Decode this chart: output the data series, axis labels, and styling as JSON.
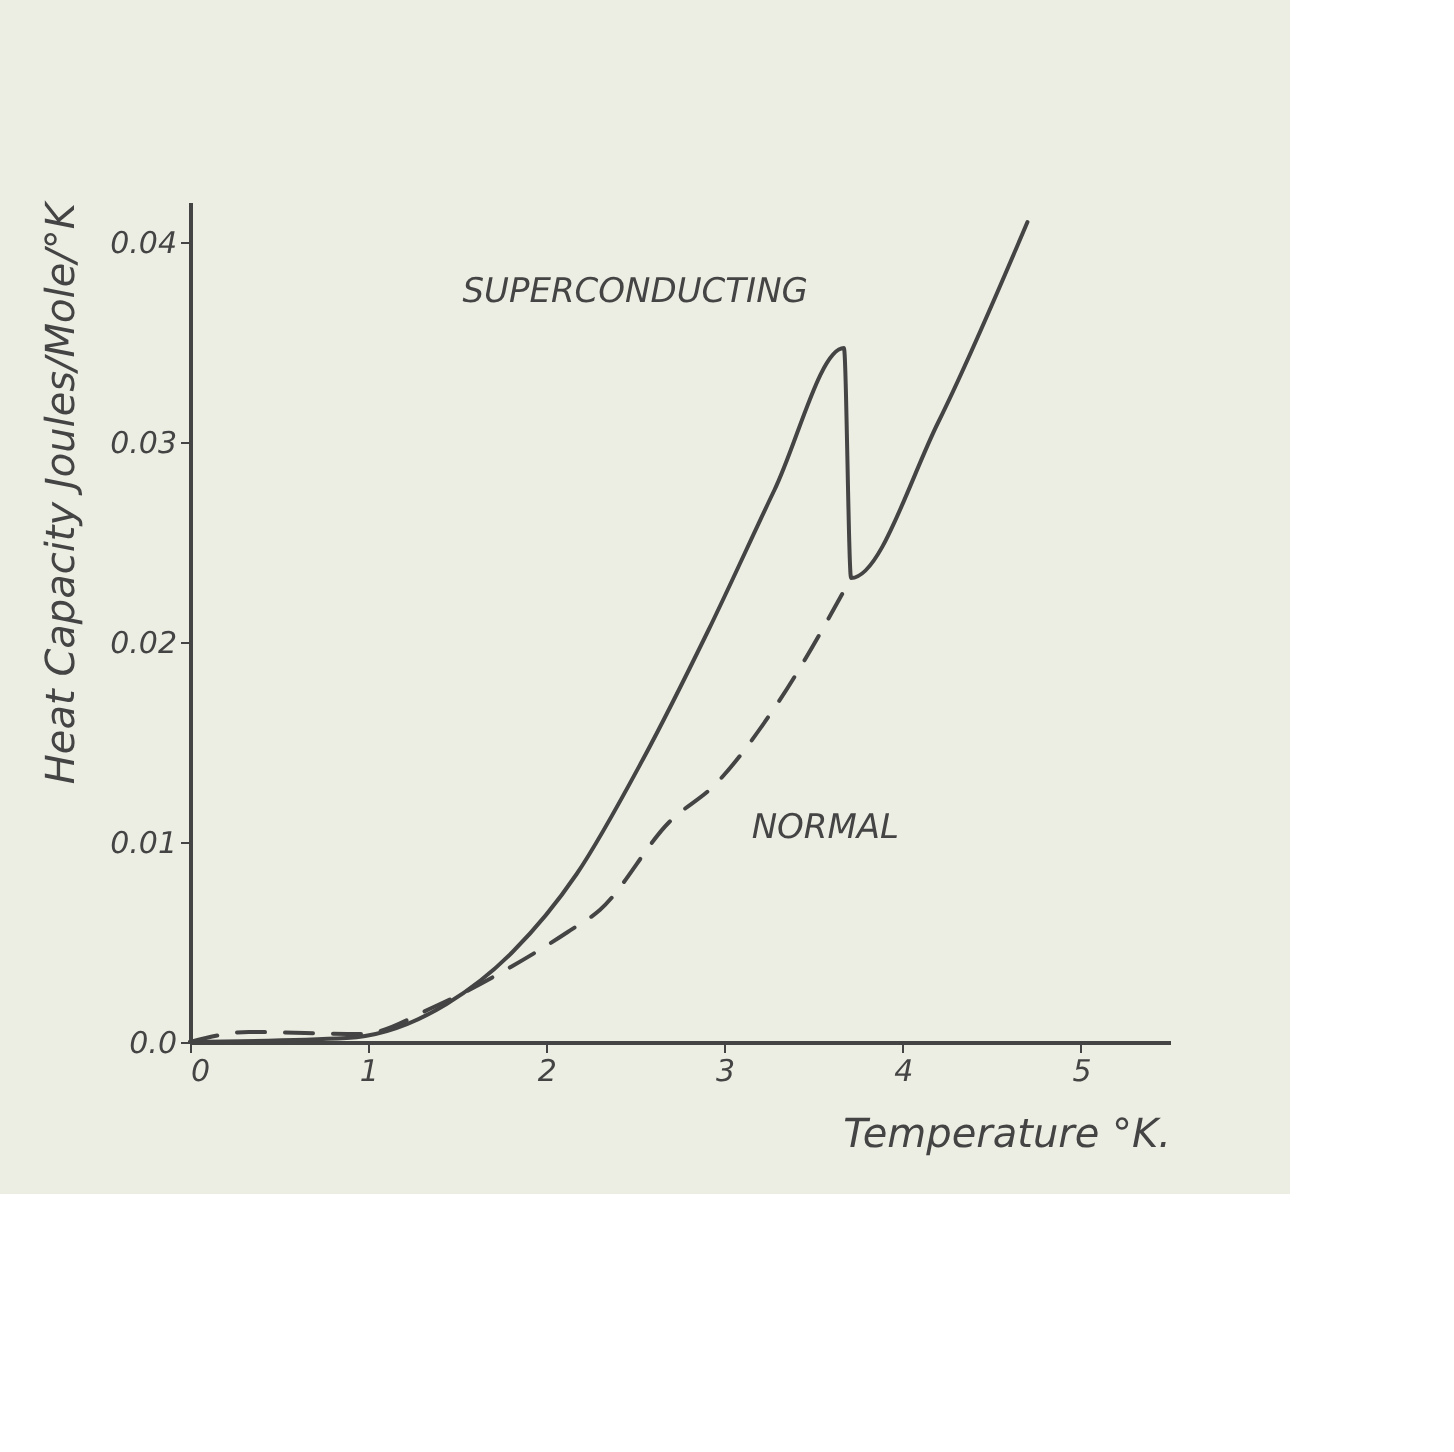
{
  "chart_data": {
    "type": "line",
    "xlabel": "Temperature °K.",
    "ylabel": "Heat Capacity  Joules/Mole/°K",
    "xlim": [
      0,
      5.5
    ],
    "ylim": [
      0,
      0.042
    ],
    "xticks": [
      0,
      1,
      2,
      3,
      4,
      5
    ],
    "yticks": [
      {
        "value": 0,
        "label": "0.0"
      },
      0.01,
      0.02,
      0.03,
      0.04
    ],
    "grid": false,
    "legend": false,
    "marker": "none",
    "series": [
      {
        "name": "SUPERCONDUCTING",
        "color": "#444444",
        "line_style": "solid",
        "x": [
          0,
          0.88,
          1.44,
          1.81,
          2.17,
          2.54,
          2.91,
          3.28,
          3.67,
          3.71,
          4.2,
          4.7
        ],
        "values": [
          0,
          0.0002,
          0.0019,
          0.0045,
          0.0084,
          0.0141,
          0.0206,
          0.0276,
          0.0347,
          0.0232,
          0.031,
          0.041
        ]
      },
      {
        "name": "NORMAL",
        "color": "#444444",
        "line_style": "dashed",
        "x": [
          0,
          0.33,
          0.96,
          1.38,
          1.81,
          2.12,
          2.3,
          2.69,
          2.95,
          3.28,
          3.71
        ],
        "values": [
          0,
          0.0005,
          0.0004,
          0.0018,
          0.0038,
          0.0055,
          0.0066,
          0.011,
          0.0129,
          0.0167,
          0.0232
        ]
      }
    ]
  }
}
